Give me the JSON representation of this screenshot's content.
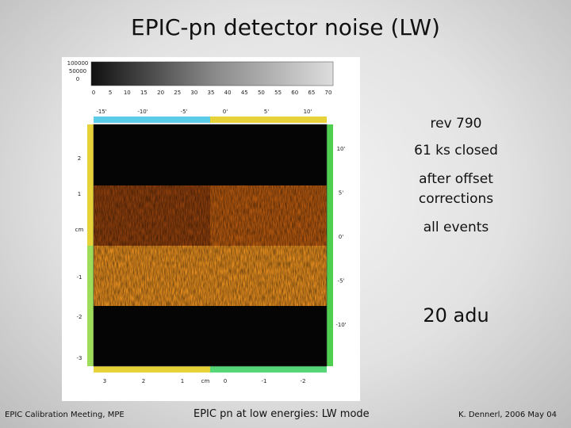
{
  "title": "EPIC-pn detector noise  (LW)",
  "notes": [
    "rev 790",
    "61 ks closed",
    "after offset",
    "corrections",
    "all events",
    "20 adu"
  ],
  "footer": {
    "left": "EPIC Calibration Meeting, MPE",
    "center": "EPIC pn at low energies: LW mode",
    "right": "K. Dennerl, 2006 May 04"
  },
  "image": {
    "colorbar_ticks": [
      "100000",
      "50000",
      "0"
    ],
    "colorbar_axis": [
      "0",
      "5",
      "10",
      "15",
      "20",
      "25",
      "30",
      "35",
      "40",
      "45",
      "50",
      "55",
      "60",
      "65",
      "70"
    ],
    "top_ticks": [
      "-15'",
      "-10'",
      "-5'",
      "0'",
      "5'",
      "10'"
    ],
    "bottom_ticks": [
      "3",
      "2",
      "1",
      "cm",
      "0",
      "-1",
      "-2"
    ],
    "left_ticks": [
      "2",
      "1",
      "cm",
      "-1",
      "-2",
      "-3"
    ],
    "right_ticks": [
      "10'",
      "5'",
      "0'",
      "-5'",
      "-10'"
    ]
  }
}
